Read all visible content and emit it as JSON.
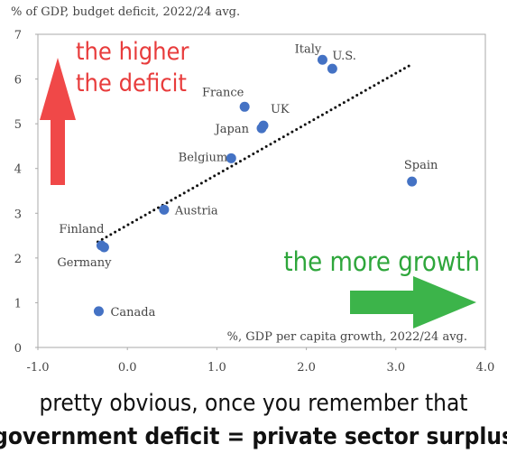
{
  "chart_data": {
    "type": "scatter",
    "y_axis_label": "% of GDP, budget deficit, 2022/24 avg.",
    "x_axis_label": "%, GDP per capita growth, 2022/24 avg.",
    "annotation_up": [
      "the higher",
      "the deficit"
    ],
    "annotation_right": "the more growth",
    "caption": [
      "pretty obvious, once you remember that",
      "government deficit = private sector surplus"
    ],
    "color": "#4472c4",
    "categories": [
      "Italy",
      "U.S.",
      "France",
      "UK",
      "Japan",
      "Belgium",
      "Spain",
      "Austria",
      "Finland",
      "Germany",
      "Canada"
    ],
    "x": [
      2.18,
      2.29,
      1.31,
      1.52,
      1.5,
      1.16,
      3.18,
      0.41,
      -0.29,
      -0.26,
      -0.32
    ],
    "values": [
      6.43,
      6.23,
      5.38,
      4.96,
      4.9,
      4.23,
      3.71,
      3.08,
      2.28,
      2.24,
      0.81
    ],
    "trendline": {
      "x": [
        -0.33,
        3.16
      ],
      "y": [
        2.36,
        6.31
      ]
    },
    "xlim": [
      -1,
      4
    ],
    "ylim": [
      0,
      7
    ],
    "xticks": [
      {
        "value": -1,
        "label": "-1.0"
      },
      {
        "value": 0,
        "label": "0.0"
      },
      {
        "value": 1,
        "label": "1.0"
      },
      {
        "value": 2,
        "label": "2.0"
      },
      {
        "value": 3,
        "label": "3.0"
      },
      {
        "value": 4,
        "label": "4.0"
      }
    ],
    "yticks": [
      0,
      1,
      2,
      3,
      4,
      5,
      6,
      7
    ]
  }
}
